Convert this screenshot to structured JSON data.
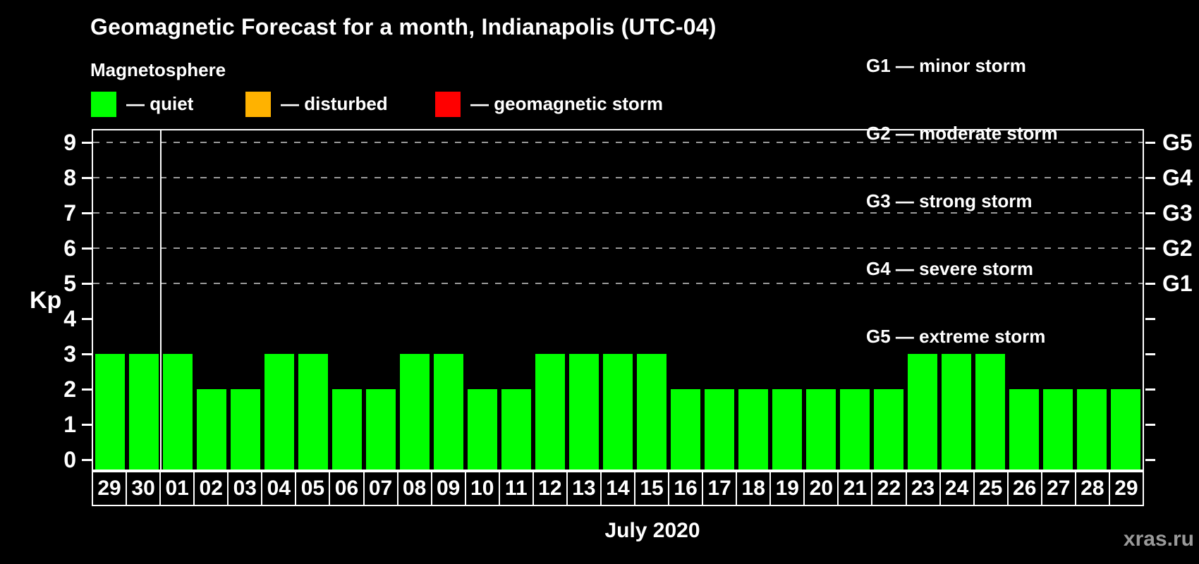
{
  "title": "Geomagnetic Forecast for a month, Indianapolis (UTC-04)",
  "subtitle": "Magnetosphere",
  "legend": {
    "items": [
      {
        "key": "quiet",
        "label": "— quiet",
        "color": "#00ff00"
      },
      {
        "key": "disturbed",
        "label": "— disturbed",
        "color": "#ffb200"
      },
      {
        "key": "storm",
        "label": "— geomagnetic storm",
        "color": "#ff0000"
      }
    ]
  },
  "g_scale": [
    "G1 — minor storm",
    "G2 — moderate storm",
    "G3 — strong storm",
    "G4 — severe storm",
    "G5 — extreme storm"
  ],
  "watermark": "xras.ru",
  "chart_data": {
    "type": "bar",
    "title": "Geomagnetic Forecast for a month, Indianapolis (UTC-04)",
    "xlabel": "July 2020",
    "ylabel": "Kp",
    "ylim": [
      0,
      9
    ],
    "yticks": [
      0,
      1,
      2,
      3,
      4,
      5,
      6,
      7,
      8,
      9
    ],
    "grid_values": [
      5,
      6,
      7,
      8,
      9
    ],
    "grid_style": "dashed gray horizontal lines at Kp 5-9 only",
    "right_axis_labels": [
      {
        "value": 5,
        "label": "G1"
      },
      {
        "value": 6,
        "label": "G2"
      },
      {
        "value": 7,
        "label": "G3"
      },
      {
        "value": 8,
        "label": "G4"
      },
      {
        "value": 9,
        "label": "G5"
      }
    ],
    "prev_month_days": 2,
    "categories": [
      "29",
      "30",
      "01",
      "02",
      "03",
      "04",
      "05",
      "06",
      "07",
      "08",
      "09",
      "10",
      "11",
      "12",
      "13",
      "14",
      "15",
      "16",
      "17",
      "18",
      "19",
      "20",
      "21",
      "22",
      "23",
      "24",
      "25",
      "26",
      "27",
      "28",
      "29"
    ],
    "values": [
      3,
      3,
      3,
      2,
      2,
      3,
      3,
      2,
      2,
      3,
      3,
      2,
      2,
      3,
      3,
      3,
      3,
      2,
      2,
      2,
      2,
      2,
      2,
      2,
      3,
      3,
      3,
      2,
      2,
      2,
      2
    ],
    "bar_colors_rule": {
      "quiet_max": 3,
      "disturbed": 4,
      "storm_min": 5
    },
    "legend_position": "top-left (magnetosphere states) and top-right (G storm scale)"
  }
}
